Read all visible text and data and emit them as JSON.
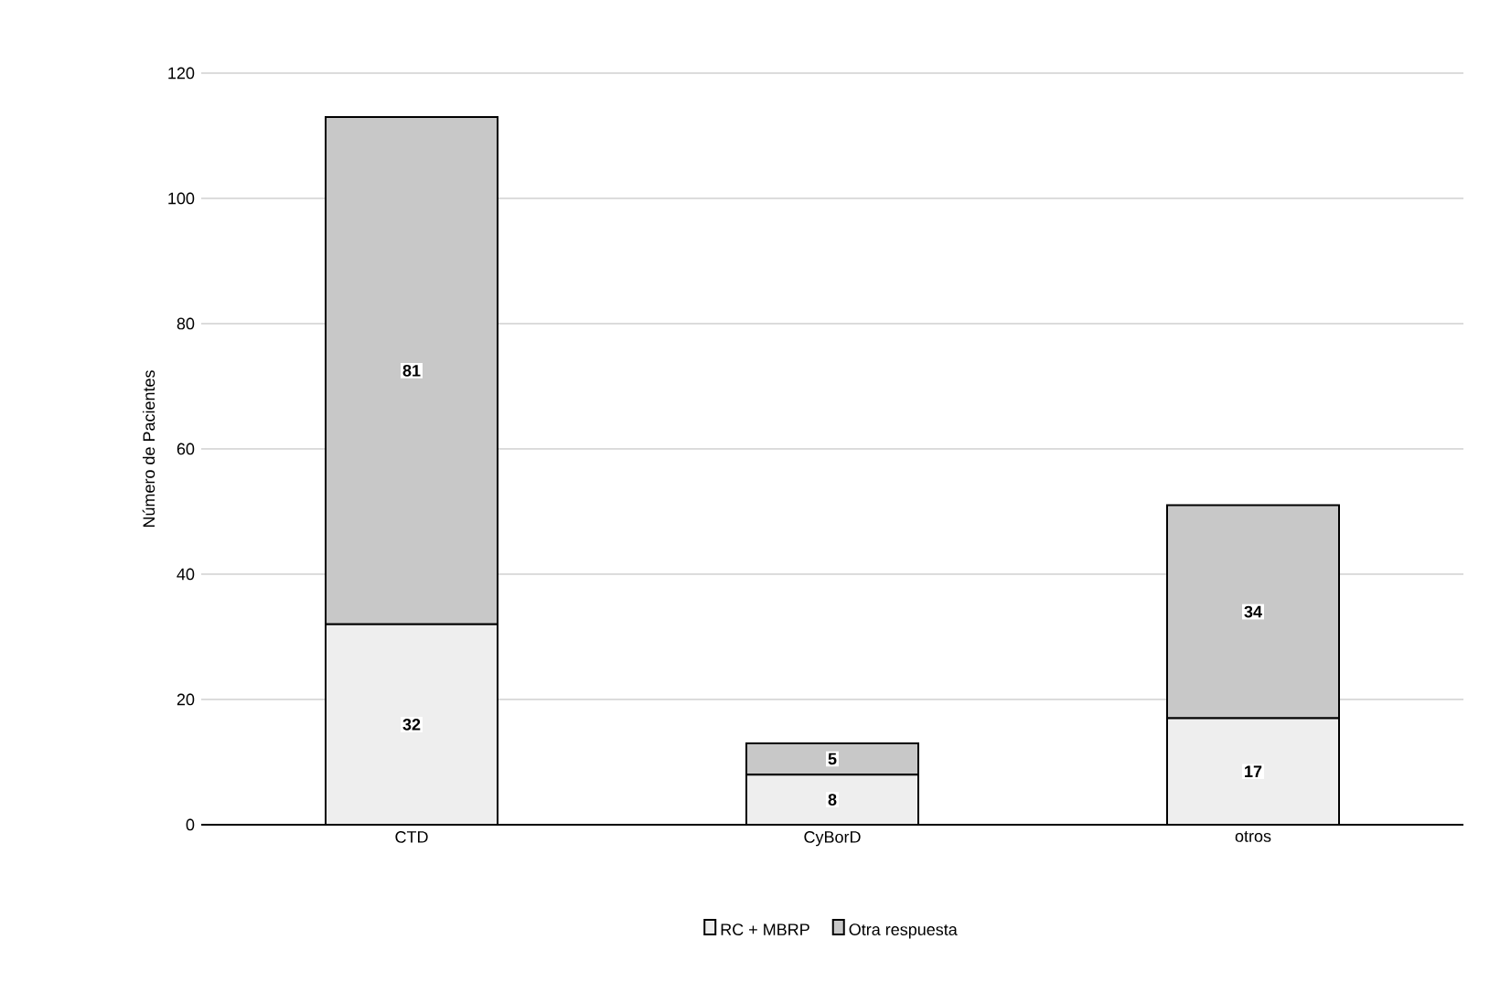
{
  "chart_data": {
    "type": "bar",
    "stacked": true,
    "ylabel": "Número de Pacientes",
    "categories": [
      "CTD",
      "CyBorD",
      "otros"
    ],
    "series": [
      {
        "name": "RC + MBRP",
        "color": "#eeeeee",
        "values": [
          32,
          8,
          17
        ]
      },
      {
        "name": "Otra respuesta",
        "color": "#c8c8c8",
        "values": [
          81,
          5,
          34
        ]
      }
    ],
    "ylim": [
      0,
      120
    ],
    "yticks": [
      0,
      20,
      40,
      60,
      80,
      100,
      120
    ],
    "grid": "y",
    "legend": "bottom",
    "data_labels": true
  }
}
